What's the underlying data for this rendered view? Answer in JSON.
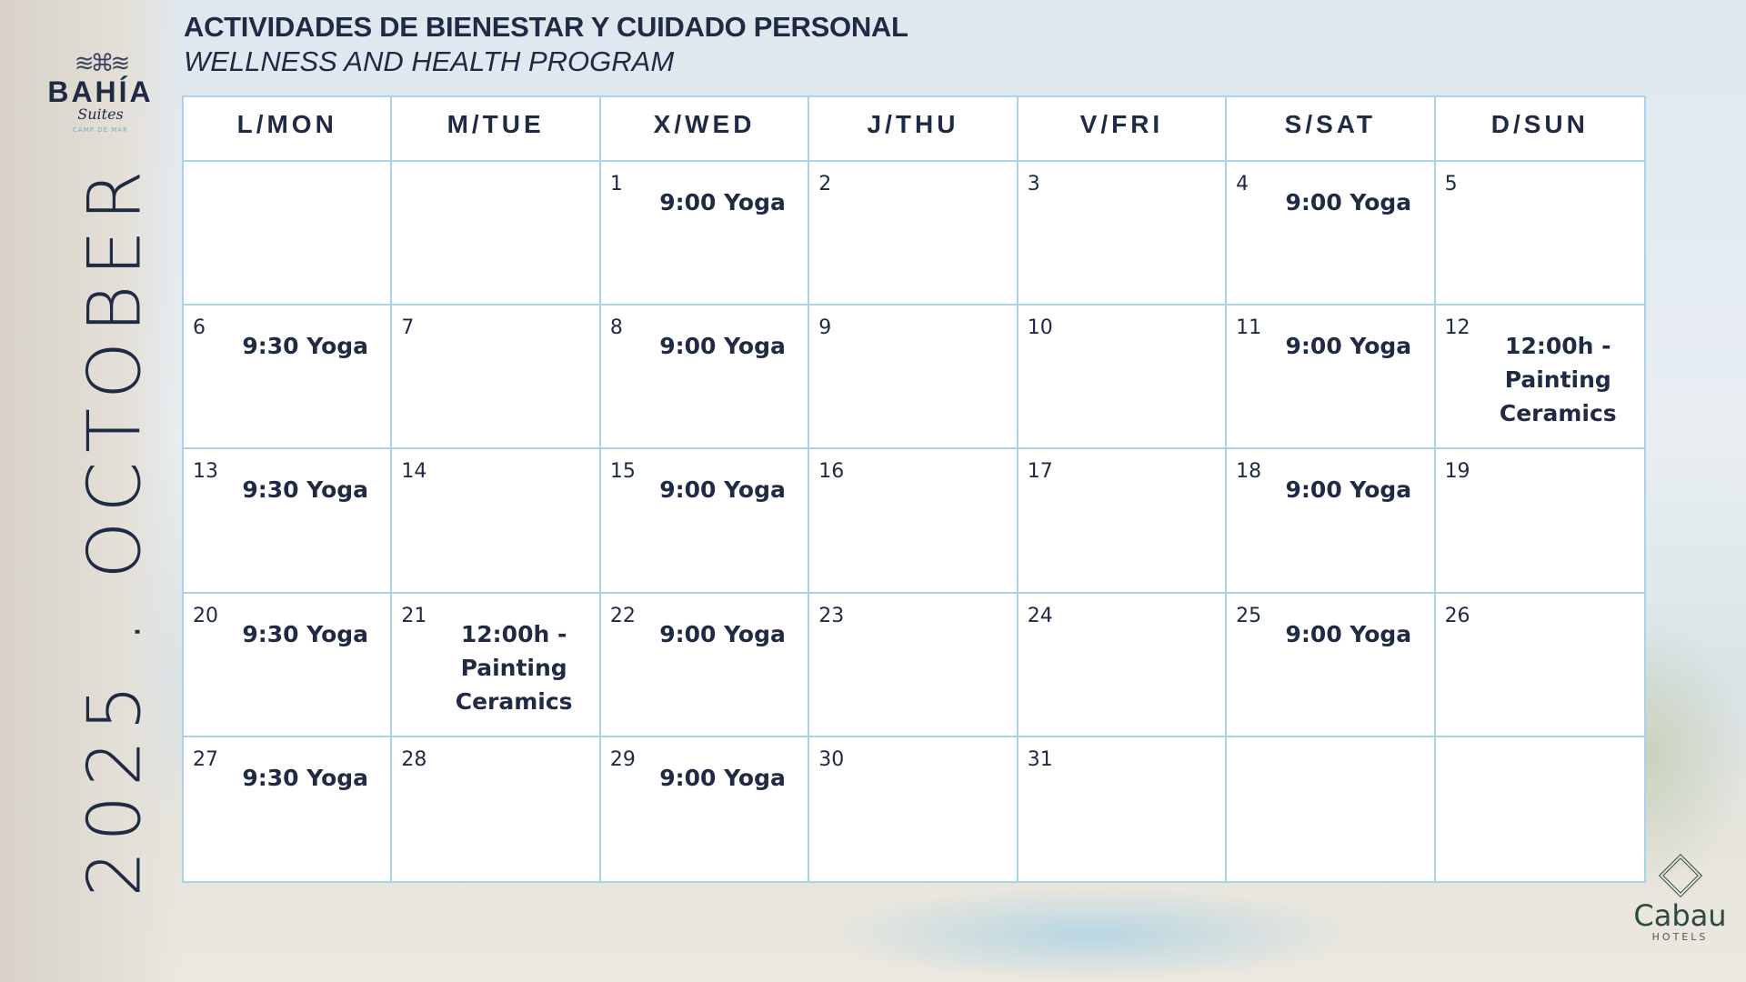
{
  "header": {
    "title": "ACTIVIDADES DE BIENESTAR Y CUIDADO PERSONAL",
    "subtitle": "WELLNESS AND HEALTH PROGRAM"
  },
  "logo": {
    "brand": "BAHÍA",
    "suites": "Suites",
    "location": "CAMP DE MAR"
  },
  "side_label": "2025 . OCTOBER",
  "partner": {
    "name": "Cabau",
    "sub": "HOTELS"
  },
  "colors": {
    "text": "#1f2a44",
    "grid": "#a9d3e6"
  },
  "calendar": {
    "days": [
      "L/MON",
      "M/TUE",
      "X/WED",
      "J/THU",
      "V/FRI",
      "S/SAT",
      "D/SUN"
    ],
    "weeks": [
      [
        {
          "day": "",
          "event": ""
        },
        {
          "day": "",
          "event": ""
        },
        {
          "day": "1",
          "event": "9:00 Yoga"
        },
        {
          "day": "2",
          "event": ""
        },
        {
          "day": "3",
          "event": ""
        },
        {
          "day": "4",
          "event": "9:00 Yoga"
        },
        {
          "day": "5",
          "event": ""
        }
      ],
      [
        {
          "day": "6",
          "event": "9:30 Yoga"
        },
        {
          "day": "7",
          "event": ""
        },
        {
          "day": "8",
          "event": "9:00 Yoga"
        },
        {
          "day": "9",
          "event": ""
        },
        {
          "day": "10",
          "event": ""
        },
        {
          "day": "11",
          "event": "9:00 Yoga"
        },
        {
          "day": "12",
          "event": "12:00h - Painting Ceramics"
        }
      ],
      [
        {
          "day": "13",
          "event": "9:30 Yoga"
        },
        {
          "day": "14",
          "event": ""
        },
        {
          "day": "15",
          "event": "9:00 Yoga"
        },
        {
          "day": "16",
          "event": ""
        },
        {
          "day": "17",
          "event": ""
        },
        {
          "day": "18",
          "event": "9:00 Yoga"
        },
        {
          "day": "19",
          "event": ""
        }
      ],
      [
        {
          "day": "20",
          "event": "9:30 Yoga"
        },
        {
          "day": "21",
          "event": "12:00h - Painting Ceramics"
        },
        {
          "day": "22",
          "event": "9:00 Yoga"
        },
        {
          "day": "23",
          "event": ""
        },
        {
          "day": "24",
          "event": ""
        },
        {
          "day": "25",
          "event": "9:00 Yoga"
        },
        {
          "day": "26",
          "event": ""
        }
      ],
      [
        {
          "day": "27",
          "event": "9:30 Yoga"
        },
        {
          "day": "28",
          "event": ""
        },
        {
          "day": "29",
          "event": "9:00 Yoga"
        },
        {
          "day": "30",
          "event": ""
        },
        {
          "day": "31",
          "event": ""
        },
        {
          "day": "",
          "event": ""
        },
        {
          "day": "",
          "event": ""
        }
      ]
    ]
  }
}
